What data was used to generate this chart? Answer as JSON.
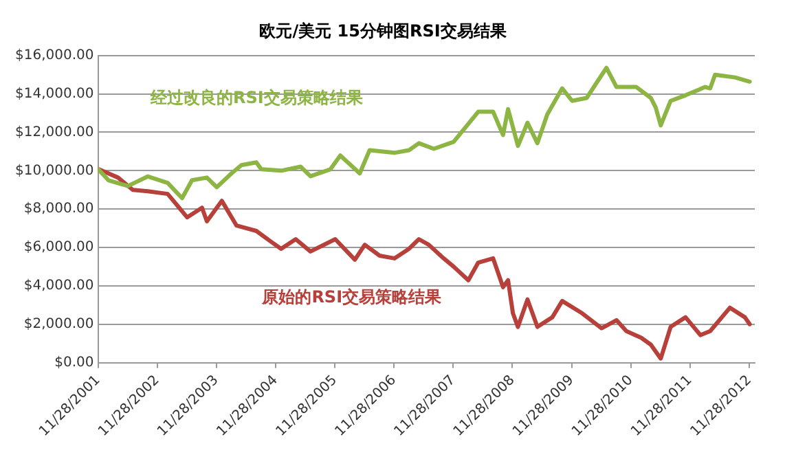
{
  "chart_data": {
    "type": "line",
    "title": "欧元/美元 15分钟图RSI交易结果",
    "series": [
      {
        "name": "经过改良的RSI交易策略结果",
        "color": "#8db543",
        "x": [
          "2001-11-28",
          "2002-02",
          "2002-06",
          "2002-10",
          "2003-02",
          "2003-05",
          "2003-07",
          "2003-10",
          "2003-12",
          "2004-03",
          "2004-05",
          "2004-08",
          "2004-09",
          "2005-01",
          "2005-05",
          "2005-07",
          "2005-11",
          "2006-01",
          "2006-05",
          "2006-07",
          "2006-12",
          "2007-03",
          "2007-05",
          "2007-08",
          "2007-12",
          "2008-05",
          "2008-08",
          "2008-10",
          "2008-11",
          "2009-01",
          "2009-03",
          "2009-05",
          "2009-07",
          "2009-10",
          "2009-12",
          "2010-03",
          "2010-07",
          "2010-09",
          "2011-01",
          "2011-04",
          "2011-05",
          "2011-06",
          "2011-08",
          "2011-11",
          "2012-03",
          "2012-04",
          "2012-05",
          "2012-09",
          "2012-12"
        ],
        "values": [
          10090,
          9500,
          9200,
          9700,
          9360,
          8570,
          9500,
          9640,
          9140,
          9860,
          10290,
          10430,
          10070,
          10000,
          10210,
          9710,
          10070,
          10790,
          9860,
          11070,
          10930,
          11070,
          11430,
          11140,
          11500,
          13070,
          13070,
          11860,
          13210,
          11290,
          12500,
          11430,
          12930,
          14290,
          13640,
          13790,
          15360,
          14360,
          14360,
          13790,
          13290,
          12360,
          13640,
          13930,
          14360,
          14290,
          15000,
          14860,
          14640
        ]
      },
      {
        "name": "原始的RSI交易策略结果",
        "color": "#b8403a",
        "x": [
          "2001-11-28",
          "2002-04",
          "2002-07",
          "2002-10",
          "2003-02",
          "2003-06",
          "2003-09",
          "2003-10",
          "2004-01",
          "2004-04",
          "2004-08",
          "2004-11",
          "2005-01",
          "2005-04",
          "2005-07",
          "2005-12",
          "2006-04",
          "2006-06",
          "2006-09",
          "2006-12",
          "2007-03",
          "2007-05",
          "2007-07",
          "2007-10",
          "2007-12",
          "2008-03",
          "2008-05",
          "2008-08",
          "2008-10",
          "2008-11",
          "2008-12",
          "2009-01",
          "2009-03",
          "2009-05",
          "2009-08",
          "2009-10",
          "2010-02",
          "2010-06",
          "2010-09",
          "2010-11",
          "2011-02",
          "2011-04",
          "2011-06",
          "2011-08",
          "2011-11",
          "2012-02",
          "2012-04",
          "2012-08",
          "2012-11",
          "2012-12"
        ],
        "values": [
          10090,
          9640,
          9000,
          8930,
          8790,
          7570,
          8070,
          7360,
          8430,
          7140,
          6860,
          6290,
          5930,
          6430,
          5790,
          6430,
          5360,
          6140,
          5570,
          5430,
          5930,
          6430,
          6140,
          5430,
          5000,
          4290,
          5210,
          5430,
          3930,
          4290,
          2570,
          1860,
          3290,
          1860,
          2360,
          3210,
          2570,
          1790,
          2210,
          1640,
          1290,
          930,
          210,
          1860,
          2360,
          1430,
          1640,
          2860,
          2360,
          2000
        ]
      }
    ],
    "xlim": [
      "2001-11-28",
      "2013-01-01"
    ],
    "xticks": [
      {
        "value": "2001-11-28",
        "label": "11/28/2001"
      },
      {
        "value": "2002-11-28",
        "label": "11/28/2002"
      },
      {
        "value": "2003-11-28",
        "label": "11/28/2003"
      },
      {
        "value": "2004-11-28",
        "label": "11/28/2004"
      },
      {
        "value": "2005-11-28",
        "label": "11/28/2005"
      },
      {
        "value": "2006-11-28",
        "label": "11/28/2006"
      },
      {
        "value": "2007-11-28",
        "label": "11/28/2007"
      },
      {
        "value": "2008-11-28",
        "label": "11/28/2008"
      },
      {
        "value": "2009-11-28",
        "label": "11/28/2009"
      },
      {
        "value": "2010-11-28",
        "label": "11/28/2010"
      },
      {
        "value": "2011-11-28",
        "label": "11/28/2011"
      },
      {
        "value": "2012-11-28",
        "label": "11/28/2012"
      }
    ],
    "ylim": [
      0,
      16000
    ],
    "yticks": [
      {
        "value": 0,
        "label": "$0.00"
      },
      {
        "value": 2000,
        "label": "$2,000.00"
      },
      {
        "value": 4000,
        "label": "$4,000.00"
      },
      {
        "value": 6000,
        "label": "$6,000.00"
      },
      {
        "value": 8000,
        "label": "$8,000.00"
      },
      {
        "value": 10000,
        "label": "$10,000.00"
      },
      {
        "value": 12000,
        "label": "$12,000.00"
      },
      {
        "value": 14000,
        "label": "$14,000.00"
      },
      {
        "value": 16000,
        "label": "$16,000.00"
      }
    ],
    "grid": "y",
    "legend": false,
    "marker": "none",
    "line_style": "solid"
  }
}
